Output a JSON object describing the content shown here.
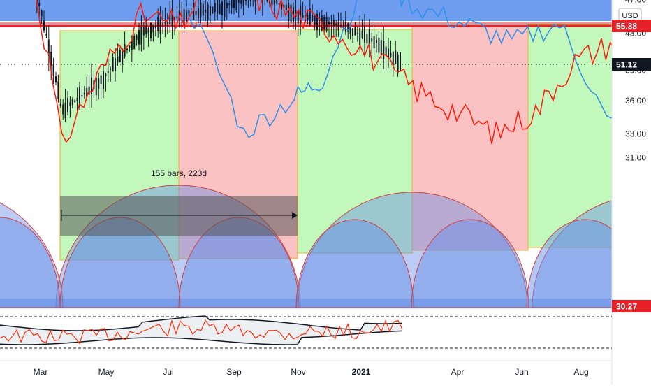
{
  "currency": "USD",
  "measurement_label": "155 bars, 223d",
  "price_labels": [
    {
      "value": 55.38,
      "text": "55.38",
      "color": "#e8202a",
      "text_color": "#ffffff"
    },
    {
      "value": 51.12,
      "text": "51.12",
      "color": "#131722",
      "text_color": "#ffffff"
    },
    {
      "value": 30.27,
      "text": "30.27",
      "color": "#e8202a",
      "text_color": "#ffffff"
    }
  ],
  "colors": {
    "background": "#ffffff",
    "band_blue": "#6f9ef0",
    "green_zone": "#b9f7b0",
    "red_zone": "#f9b7b7",
    "zone_border": "#f0b020",
    "arc_fill": "#6a8fe6",
    "candles": "#131722",
    "red_line": "#ff1a0a",
    "blue_line": "#2f8fe8",
    "resistance_line": "#e8202a"
  },
  "chart_data": {
    "type": "line",
    "title": "",
    "xlabel": "",
    "ylabel": "",
    "x_ticks": [
      "Mar",
      "May",
      "Jul",
      "Sep",
      "Nov",
      "2021",
      "Apr",
      "Jun",
      "Aug"
    ],
    "y_ticks": [
      "31.00",
      "33.00",
      "36.00",
      "39.00",
      "43.00",
      "47.00",
      "51.12"
    ],
    "ylim": [
      30,
      57
    ],
    "y_scale": "log",
    "grid": false,
    "horizontal_lines": [
      55.38,
      51.12,
      30.27
    ],
    "series": [
      {
        "x": [
          2020.14,
          2020.19,
          2020.24,
          2020.29,
          2020.34,
          2020.39,
          2020.44,
          2020.49,
          2020.54,
          2020.59,
          2020.64,
          2020.69,
          2020.74,
          2020.79,
          2020.84,
          2020.89,
          2020.94,
          2020.99,
          2021.04,
          2021.09
        ],
        "values": [
          55,
          35,
          38,
          43,
          45,
          46,
          48,
          45,
          44,
          42,
          38,
          35,
          33,
          33.5,
          39,
          43,
          46,
          48,
          50,
          51
        ]
      },
      {
        "x": [
          2020.14,
          2020.19,
          2020.24,
          2020.29,
          2020.34,
          2020.39,
          2020.44,
          2020.49,
          2020.54,
          2020.59,
          2020.64,
          2020.69,
          2020.74,
          2020.79,
          2020.84,
          2020.89,
          2020.94,
          2020.99,
          2021.04,
          2021.09,
          2021.14
        ],
        "values": [
          56,
          32,
          39,
          45,
          44,
          50,
          47,
          45,
          43,
          40,
          37,
          35,
          33,
          35,
          40,
          42,
          44,
          48,
          46,
          51,
          50
        ]
      },
      {
        "x": [
          2020.3,
          2020.35,
          2020.42,
          2020.48,
          2020.52,
          2020.58,
          2020.64,
          2020.7,
          2020.76,
          2020.82,
          2020.88,
          2020.93,
          2020.98,
          2021.03,
          2021.09,
          2021.15,
          2021.21,
          2021.27
        ],
        "values": [
          57,
          46,
          33,
          36,
          38,
          50,
          46,
          44,
          42,
          44,
          34,
          33,
          34,
          38,
          42,
          41,
          48,
          51
        ]
      }
    ]
  }
}
